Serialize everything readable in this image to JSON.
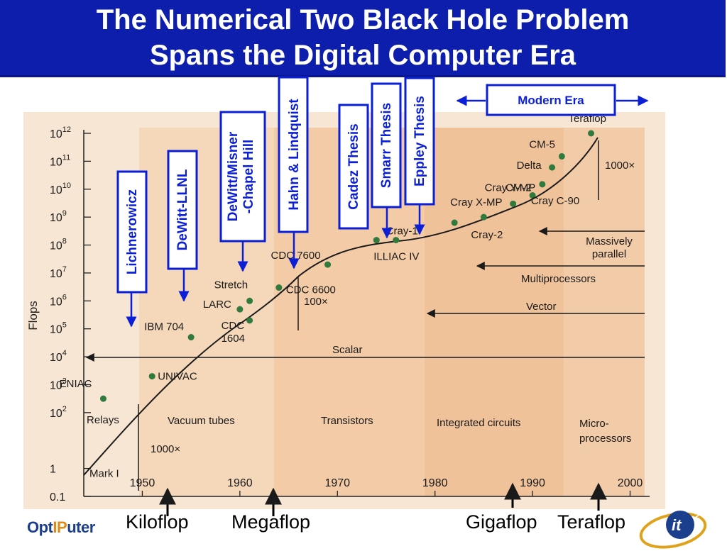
{
  "title": {
    "line1": "The Numerical Two Black Hole Problem",
    "line2": "Spans the Digital Computer Era"
  },
  "chart_data": {
    "type": "scatter",
    "ylabel": "Flops",
    "xlabel": "",
    "x_ticks": [
      1950,
      1960,
      1970,
      1980,
      1990,
      2000
    ],
    "y_ticks": [
      {
        "base": "0.1",
        "exp": ""
      },
      {
        "base": "1",
        "exp": ""
      },
      {
        "base": "10",
        "exp": "2"
      },
      {
        "base": "10",
        "exp": "3"
      },
      {
        "base": "10",
        "exp": "4"
      },
      {
        "base": "10",
        "exp": "5"
      },
      {
        "base": "10",
        "exp": "6"
      },
      {
        "base": "10",
        "exp": "7"
      },
      {
        "base": "10",
        "exp": "8"
      },
      {
        "base": "10",
        "exp": "9"
      },
      {
        "base": "10",
        "exp": "10"
      },
      {
        "base": "10",
        "exp": "11"
      },
      {
        "base": "10",
        "exp": "12"
      }
    ],
    "xlim": [
      1944,
      2002
    ],
    "ylim_log10": [
      -1,
      12
    ],
    "y_scale": "log",
    "points": [
      {
        "label": "Mark I",
        "x": 1944,
        "y": 1
      },
      {
        "label": "ENIAC",
        "x": 1946,
        "y": 316
      },
      {
        "label": "UNIVAC",
        "x": 1951,
        "y": 2000
      },
      {
        "label": "IBM 704",
        "x": 1955,
        "y": 50000
      },
      {
        "label": "CDC 1604",
        "x": 1961,
        "y": 200000
      },
      {
        "label": "LARC",
        "x": 1960,
        "y": 500000
      },
      {
        "label": "Stretch",
        "x": 1961,
        "y": 1000000
      },
      {
        "label": "CDC 6600",
        "x": 1964,
        "y": 3000000
      },
      {
        "label": "CDC 7600",
        "x": 1969,
        "y": 20000000
      },
      {
        "label": "ILLIAC IV",
        "x": 1974,
        "y": 150000000
      },
      {
        "label": "Cray-1",
        "x": 1976,
        "y": 150000000
      },
      {
        "label": "Cray X-MP",
        "x": 1982,
        "y": 630000000
      },
      {
        "label": "Cray-2",
        "x": 1985,
        "y": 1000000000
      },
      {
        "label": "Cray Y-MP",
        "x": 1988,
        "y": 3000000000
      },
      {
        "label": "CM-2",
        "x": 1990,
        "y": 6000000000
      },
      {
        "label": "Cray C-90",
        "x": 1991,
        "y": 15000000000
      },
      {
        "label": "Delta",
        "x": 1992,
        "y": 60000000000
      },
      {
        "label": "CM-5",
        "x": 1993,
        "y": 150000000000
      },
      {
        "label": "Teraflop",
        "x": 1996,
        "y": 1000000000000
      }
    ],
    "eras": [
      "Relays",
      "Vacuum tubes",
      "Transistors",
      "Integrated circuits",
      "Micro-\nprocessors"
    ],
    "technology_arrows": [
      "Scalar",
      "Vector",
      "Multiprocessors",
      "Massively\nparallel"
    ],
    "annotations": [
      "1000×",
      "100×",
      "1000×"
    ],
    "thesis_markers": [
      {
        "label": "Lichnerowicz"
      },
      {
        "label": "DeWitt-LLNL"
      },
      {
        "label": "DeWitt/Misner\n-Chapel Hill"
      },
      {
        "label": "Hahn & Lindquist"
      },
      {
        "label": "Cadez Thesis"
      },
      {
        "label": "Smarr Thesis"
      },
      {
        "label": "Eppley Thesis"
      }
    ],
    "modern_era_label": "Modern Era"
  },
  "footer": {
    "kiloflop": "Kiloflop",
    "megaflop": "Megaflop",
    "gigaflop": "Gigaflop",
    "teraflop": "Teraflop"
  },
  "logos": {
    "optiputer_opt": "Opt",
    "optiputer_ip": "IP",
    "optiputer_uter": "uter",
    "it2": "it"
  },
  "colors": {
    "title_bg": "#0c1eab",
    "marker_blue": "#0a1fd6",
    "point_green": "#2f7a3c",
    "chart_bg": "#f6e2cc",
    "band_peach": "#f2c9a4"
  }
}
